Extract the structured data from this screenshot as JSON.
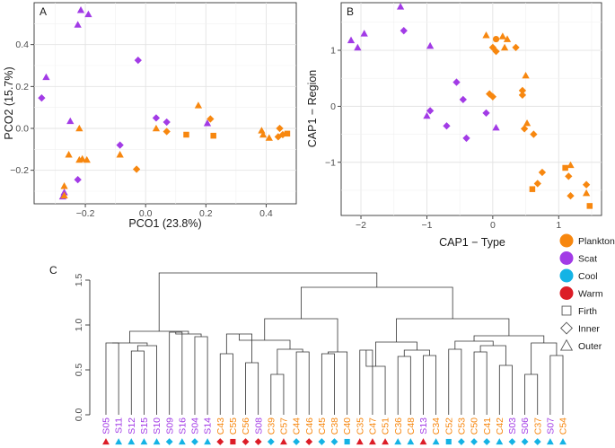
{
  "palette": {
    "Plankton": "#f7870f",
    "Scat": "#a23be6",
    "Cool": "#14b3e5",
    "Warm": "#dc1d27",
    "legend_gray": "#555555"
  },
  "legend": {
    "items": [
      {
        "label": "Plankton",
        "shape": "circle",
        "color": "#f7870f"
      },
      {
        "label": "Scat",
        "shape": "circle",
        "color": "#a23be6"
      },
      {
        "label": "Cool",
        "shape": "circle",
        "color": "#14b3e5"
      },
      {
        "label": "Warm",
        "shape": "circle",
        "color": "#dc1d27"
      },
      {
        "label": "Firth",
        "shape": "square",
        "color": "none"
      },
      {
        "label": "Inner",
        "shape": "diamond",
        "color": "none"
      },
      {
        "label": "Outer",
        "shape": "triangle",
        "color": "none"
      }
    ]
  },
  "chart_data": [
    {
      "panel": "A",
      "type": "scatter",
      "xlabel": "PCO1 (23.8%)",
      "ylabel": "PCO2 (15.7%)",
      "xlim": [
        -0.37,
        0.5
      ],
      "ylim": [
        -0.36,
        0.6
      ],
      "xticks": [
        -0.2,
        0.0,
        0.2,
        0.4
      ],
      "xtick_labels": [
        "−0.2",
        "0.0",
        "0.2",
        "0.4"
      ],
      "yticks": [
        -0.2,
        0.0,
        0.2,
        0.4
      ],
      "ytick_labels": [
        "−0.2",
        "0.0",
        "0.2",
        "0.4"
      ],
      "grid": true,
      "points": [
        {
          "x": -0.215,
          "y": 0.565,
          "group": "Scat",
          "shape": "triangle"
        },
        {
          "x": -0.19,
          "y": 0.545,
          "group": "Scat",
          "shape": "triangle"
        },
        {
          "x": -0.225,
          "y": 0.495,
          "group": "Scat",
          "shape": "triangle"
        },
        {
          "x": -0.025,
          "y": 0.325,
          "group": "Scat",
          "shape": "diamond"
        },
        {
          "x": -0.33,
          "y": 0.245,
          "group": "Scat",
          "shape": "triangle"
        },
        {
          "x": -0.345,
          "y": 0.145,
          "group": "Scat",
          "shape": "diamond"
        },
        {
          "x": -0.25,
          "y": 0.035,
          "group": "Scat",
          "shape": "triangle"
        },
        {
          "x": 0.035,
          "y": 0.05,
          "group": "Scat",
          "shape": "diamond"
        },
        {
          "x": 0.07,
          "y": 0.03,
          "group": "Scat",
          "shape": "diamond"
        },
        {
          "x": 0.205,
          "y": 0.025,
          "group": "Scat",
          "shape": "triangle"
        },
        {
          "x": -0.085,
          "y": -0.08,
          "group": "Scat",
          "shape": "diamond"
        },
        {
          "x": -0.225,
          "y": -0.245,
          "group": "Scat",
          "shape": "diamond"
        },
        {
          "x": -0.27,
          "y": -0.305,
          "group": "Scat",
          "shape": "triangle"
        },
        {
          "x": -0.275,
          "y": -0.325,
          "group": "Scat",
          "shape": "triangle"
        },
        {
          "x": 0.175,
          "y": 0.11,
          "group": "Plankton",
          "shape": "triangle"
        },
        {
          "x": 0.215,
          "y": 0.045,
          "group": "Plankton",
          "shape": "diamond"
        },
        {
          "x": 0.035,
          "y": 0.0,
          "group": "Plankton",
          "shape": "triangle"
        },
        {
          "x": 0.07,
          "y": -0.015,
          "group": "Plankton",
          "shape": "diamond"
        },
        {
          "x": 0.135,
          "y": -0.03,
          "group": "Plankton",
          "shape": "square"
        },
        {
          "x": 0.225,
          "y": -0.035,
          "group": "Plankton",
          "shape": "square"
        },
        {
          "x": -0.22,
          "y": 0.0,
          "group": "Plankton",
          "shape": "triangle"
        },
        {
          "x": -0.255,
          "y": -0.125,
          "group": "Plankton",
          "shape": "triangle"
        },
        {
          "x": -0.21,
          "y": -0.145,
          "group": "Plankton",
          "shape": "triangle"
        },
        {
          "x": -0.195,
          "y": -0.15,
          "group": "Plankton",
          "shape": "triangle"
        },
        {
          "x": -0.22,
          "y": -0.15,
          "group": "Plankton",
          "shape": "triangle"
        },
        {
          "x": -0.085,
          "y": -0.125,
          "group": "Plankton",
          "shape": "triangle"
        },
        {
          "x": -0.03,
          "y": -0.195,
          "group": "Plankton",
          "shape": "diamond"
        },
        {
          "x": -0.27,
          "y": -0.275,
          "group": "Plankton",
          "shape": "triangle"
        },
        {
          "x": -0.27,
          "y": -0.32,
          "group": "Plankton",
          "shape": "triangle"
        },
        {
          "x": 0.385,
          "y": -0.01,
          "group": "Plankton",
          "shape": "triangle"
        },
        {
          "x": 0.39,
          "y": -0.03,
          "group": "Plankton",
          "shape": "triangle"
        },
        {
          "x": 0.41,
          "y": -0.045,
          "group": "Plankton",
          "shape": "triangle"
        },
        {
          "x": 0.445,
          "y": 0.0,
          "group": "Plankton",
          "shape": "diamond"
        },
        {
          "x": 0.44,
          "y": -0.04,
          "group": "Plankton",
          "shape": "diamond"
        },
        {
          "x": 0.455,
          "y": -0.03,
          "group": "Plankton",
          "shape": "diamond"
        },
        {
          "x": 0.47,
          "y": -0.025,
          "group": "Plankton",
          "shape": "square"
        }
      ]
    },
    {
      "panel": "B",
      "type": "scatter",
      "xlabel": "CAP1 − Type",
      "ylabel": "CAP1 − Region",
      "xlim": [
        -2.3,
        1.65
      ],
      "ylim": [
        -1.95,
        1.85
      ],
      "xticks": [
        -2,
        -1,
        0,
        1
      ],
      "xtick_labels": [
        "−2",
        "−1",
        "0",
        "1"
      ],
      "yticks": [
        -1,
        0,
        1
      ],
      "ytick_labels": [
        "−1",
        "0",
        "1"
      ],
      "grid": true,
      "points": [
        {
          "x": -1.4,
          "y": 1.78,
          "group": "Scat",
          "shape": "triangle"
        },
        {
          "x": -1.35,
          "y": 1.35,
          "group": "Scat",
          "shape": "diamond"
        },
        {
          "x": -1.95,
          "y": 1.3,
          "group": "Scat",
          "shape": "triangle"
        },
        {
          "x": -2.15,
          "y": 1.18,
          "group": "Scat",
          "shape": "triangle"
        },
        {
          "x": -2.05,
          "y": 1.05,
          "group": "Scat",
          "shape": "triangle"
        },
        {
          "x": -0.95,
          "y": 1.08,
          "group": "Scat",
          "shape": "triangle"
        },
        {
          "x": -0.55,
          "y": 0.43,
          "group": "Scat",
          "shape": "diamond"
        },
        {
          "x": -0.45,
          "y": 0.12,
          "group": "Scat",
          "shape": "diamond"
        },
        {
          "x": -0.95,
          "y": -0.08,
          "group": "Scat",
          "shape": "diamond"
        },
        {
          "x": -1.0,
          "y": -0.17,
          "group": "Scat",
          "shape": "triangle"
        },
        {
          "x": -0.7,
          "y": -0.35,
          "group": "Scat",
          "shape": "diamond"
        },
        {
          "x": -0.1,
          "y": -0.12,
          "group": "Scat",
          "shape": "diamond"
        },
        {
          "x": 0.05,
          "y": -0.38,
          "group": "Scat",
          "shape": "triangle"
        },
        {
          "x": -0.4,
          "y": -0.57,
          "group": "Scat",
          "shape": "diamond"
        },
        {
          "x": -0.1,
          "y": 1.27,
          "group": "Plankton",
          "shape": "triangle"
        },
        {
          "x": 0.05,
          "y": 1.2,
          "group": "Plankton",
          "shape": "circle"
        },
        {
          "x": 0.0,
          "y": 1.05,
          "group": "Plankton",
          "shape": "diamond"
        },
        {
          "x": 0.15,
          "y": 1.25,
          "group": "Plankton",
          "shape": "triangle"
        },
        {
          "x": 0.22,
          "y": 1.2,
          "group": "Plankton",
          "shape": "triangle"
        },
        {
          "x": 0.05,
          "y": 0.98,
          "group": "Plankton",
          "shape": "diamond"
        },
        {
          "x": 0.18,
          "y": 1.05,
          "group": "Plankton",
          "shape": "triangle"
        },
        {
          "x": 0.35,
          "y": 1.05,
          "group": "Plankton",
          "shape": "diamond"
        },
        {
          "x": 0.5,
          "y": 0.55,
          "group": "Plankton",
          "shape": "triangle"
        },
        {
          "x": -0.05,
          "y": 0.22,
          "group": "Plankton",
          "shape": "diamond"
        },
        {
          "x": 0.0,
          "y": 0.17,
          "group": "Plankton",
          "shape": "diamond"
        },
        {
          "x": 0.45,
          "y": 0.28,
          "group": "Plankton",
          "shape": "diamond"
        },
        {
          "x": 0.45,
          "y": 0.2,
          "group": "Plankton",
          "shape": "diamond"
        },
        {
          "x": 0.52,
          "y": -0.3,
          "group": "Plankton",
          "shape": "triangle"
        },
        {
          "x": 0.48,
          "y": -0.4,
          "group": "Plankton",
          "shape": "diamond"
        },
        {
          "x": 0.62,
          "y": -0.5,
          "group": "Plankton",
          "shape": "diamond"
        },
        {
          "x": 0.75,
          "y": -1.18,
          "group": "Plankton",
          "shape": "diamond"
        },
        {
          "x": 0.68,
          "y": -1.38,
          "group": "Plankton",
          "shape": "diamond"
        },
        {
          "x": 0.6,
          "y": -1.48,
          "group": "Plankton",
          "shape": "square"
        },
        {
          "x": 1.1,
          "y": -1.1,
          "group": "Plankton",
          "shape": "square"
        },
        {
          "x": 1.18,
          "y": -1.05,
          "group": "Plankton",
          "shape": "triangle"
        },
        {
          "x": 1.15,
          "y": -1.25,
          "group": "Plankton",
          "shape": "diamond"
        },
        {
          "x": 1.18,
          "y": -1.6,
          "group": "Plankton",
          "shape": "diamond"
        },
        {
          "x": 1.42,
          "y": -1.4,
          "group": "Plankton",
          "shape": "diamond"
        },
        {
          "x": 1.42,
          "y": -1.55,
          "group": "Plankton",
          "shape": "triangle"
        },
        {
          "x": 1.47,
          "y": -1.78,
          "group": "Plankton",
          "shape": "square"
        }
      ]
    },
    {
      "panel": "C",
      "type": "dendrogram",
      "ylim": [
        0.0,
        1.5
      ],
      "yticks": [
        0.0,
        0.5,
        1.0,
        1.5
      ],
      "ytick_labels": [
        "0.0",
        "0.5",
        "1.0",
        "1.5"
      ],
      "leaves": [
        {
          "label": "S05",
          "group": "Scat",
          "region": "Warm",
          "shape": "triangle"
        },
        {
          "label": "S11",
          "group": "Scat",
          "region": "Cool",
          "shape": "triangle"
        },
        {
          "label": "S12",
          "group": "Scat",
          "region": "Cool",
          "shape": "triangle"
        },
        {
          "label": "S15",
          "group": "Scat",
          "region": "Cool",
          "shape": "triangle"
        },
        {
          "label": "S10",
          "group": "Scat",
          "region": "Cool",
          "shape": "triangle"
        },
        {
          "label": "S09",
          "group": "Scat",
          "region": "Cool",
          "shape": "diamond"
        },
        {
          "label": "S16",
          "group": "Scat",
          "region": "Cool",
          "shape": "triangle"
        },
        {
          "label": "S04",
          "group": "Scat",
          "region": "Cool",
          "shape": "diamond"
        },
        {
          "label": "S14",
          "group": "Scat",
          "region": "Cool",
          "shape": "triangle"
        },
        {
          "label": "C43",
          "group": "Plankton",
          "region": "Warm",
          "shape": "diamond"
        },
        {
          "label": "C55",
          "group": "Plankton",
          "region": "Warm",
          "shape": "square"
        },
        {
          "label": "C56",
          "group": "Plankton",
          "region": "Warm",
          "shape": "diamond"
        },
        {
          "label": "S08",
          "group": "Scat",
          "region": "Warm",
          "shape": "diamond"
        },
        {
          "label": "C39",
          "group": "Plankton",
          "region": "Cool",
          "shape": "diamond"
        },
        {
          "label": "C57",
          "group": "Plankton",
          "region": "Warm",
          "shape": "triangle"
        },
        {
          "label": "C44",
          "group": "Plankton",
          "region": "Cool",
          "shape": "diamond"
        },
        {
          "label": "C46",
          "group": "Plankton",
          "region": "Warm",
          "shape": "diamond"
        },
        {
          "label": "C45",
          "group": "Plankton",
          "region": "Cool",
          "shape": "diamond"
        },
        {
          "label": "C38",
          "group": "Plankton",
          "region": "Cool",
          "shape": "diamond"
        },
        {
          "label": "C40",
          "group": "Plankton",
          "region": "Cool",
          "shape": "square"
        },
        {
          "label": "C35",
          "group": "Plankton",
          "region": "Warm",
          "shape": "triangle"
        },
        {
          "label": "C47",
          "group": "Plankton",
          "region": "Warm",
          "shape": "triangle"
        },
        {
          "label": "C51",
          "group": "Plankton",
          "region": "Warm",
          "shape": "triangle"
        },
        {
          "label": "C36",
          "group": "Plankton",
          "region": "Cool",
          "shape": "triangle"
        },
        {
          "label": "C48",
          "group": "Plankton",
          "region": "Cool",
          "shape": "triangle"
        },
        {
          "label": "S13",
          "group": "Scat",
          "region": "Warm",
          "shape": "triangle"
        },
        {
          "label": "C34",
          "group": "Plankton",
          "region": "Cool",
          "shape": "triangle"
        },
        {
          "label": "C52",
          "group": "Plankton",
          "region": "Cool",
          "shape": "square"
        },
        {
          "label": "C53",
          "group": "Plankton",
          "region": "Cool",
          "shape": "diamond"
        },
        {
          "label": "C50",
          "group": "Plankton",
          "region": "Cool",
          "shape": "diamond"
        },
        {
          "label": "C41",
          "group": "Plankton",
          "region": "Cool",
          "shape": "diamond"
        },
        {
          "label": "C42",
          "group": "Plankton",
          "region": "Cool",
          "shape": "triangle"
        },
        {
          "label": "S03",
          "group": "Scat",
          "region": "Cool",
          "shape": "diamond"
        },
        {
          "label": "S06",
          "group": "Scat",
          "region": "Cool",
          "shape": "diamond"
        },
        {
          "label": "C37",
          "group": "Plankton",
          "region": "Cool",
          "shape": "diamond"
        },
        {
          "label": "S07",
          "group": "Scat",
          "region": "Cool",
          "shape": "triangle"
        },
        {
          "label": "C54",
          "group": "Plankton",
          "region": "Cool",
          "shape": "triangle"
        }
      ],
      "merges": [
        [
          0,
          1,
          0.8
        ],
        [
          2,
          3,
          0.71
        ],
        [
          -2,
          4,
          0.77
        ],
        [
          -1,
          -3,
          0.8
        ],
        [
          5,
          6,
          0.92
        ],
        [
          7,
          8,
          0.87
        ],
        [
          -5,
          -6,
          0.9
        ],
        [
          -4,
          -7,
          0.93
        ],
        [
          9,
          10,
          0.68
        ],
        [
          11,
          12,
          0.58
        ],
        [
          -9,
          -10,
          0.9
        ],
        [
          13,
          14,
          0.45
        ],
        [
          15,
          16,
          0.7
        ],
        [
          17,
          18,
          0.68
        ],
        [
          -12,
          -13,
          0.73
        ],
        [
          -14,
          19,
          0.7
        ],
        [
          -11,
          -15,
          0.83
        ],
        [
          -16,
          -17,
          1.07
        ],
        [
          20,
          21,
          0.72
        ],
        [
          -19,
          22,
          0.54
        ],
        [
          23,
          24,
          0.65
        ],
        [
          25,
          26,
          0.66
        ],
        [
          -21,
          -22,
          0.72
        ],
        [
          -20,
          -23,
          0.81
        ],
        [
          27,
          28,
          0.73
        ],
        [
          29,
          30,
          0.7
        ],
        [
          31,
          32,
          0.55
        ],
        [
          -26,
          -27,
          0.77
        ],
        [
          -25,
          -28,
          0.82
        ],
        [
          33,
          34,
          0.45
        ],
        [
          35,
          36,
          0.66
        ],
        [
          -30,
          -31,
          0.8
        ],
        [
          -29,
          -32,
          0.88
        ],
        [
          -24,
          -33,
          1.07
        ],
        [
          -18,
          -34,
          1.42
        ],
        [
          -8,
          -35,
          1.58
        ]
      ]
    }
  ]
}
